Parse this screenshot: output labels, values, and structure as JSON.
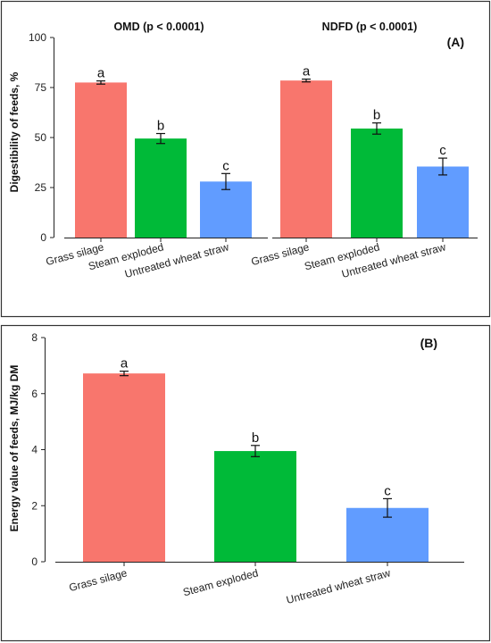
{
  "colors": {
    "grass_silage": "#f8766d",
    "steam_exploded": "#00ba38",
    "untreated_wheat_straw": "#619cff"
  },
  "chart_data": [
    {
      "type": "bar",
      "panel": "(A)",
      "title": "OMD (p < 0.0001)",
      "ylabel": "Digestibility of feeds, %",
      "ylim": [
        0,
        100
      ],
      "yticks": [
        0,
        25,
        50,
        75,
        100
      ],
      "categories": [
        "Grass silage",
        "Steam exploded",
        "Untreated wheat straw"
      ],
      "values": [
        77.5,
        49.5,
        28.0
      ],
      "errors": [
        0.8,
        2.5,
        4.0
      ],
      "letters": [
        "a",
        "b",
        "c"
      ]
    },
    {
      "type": "bar",
      "title": "NDFD (p < 0.0001)",
      "ylim": [
        0,
        100
      ],
      "categories": [
        "Grass silage",
        "Steam exploded",
        "Untreated wheat straw"
      ],
      "values": [
        78.5,
        54.5,
        35.5
      ],
      "errors": [
        0.7,
        2.8,
        4.2
      ],
      "letters": [
        "a",
        "b",
        "c"
      ]
    },
    {
      "type": "bar",
      "panel": "(B)",
      "title": "",
      "ylabel": "Energy value of feeds, MJ/kg DM",
      "ylim": [
        0,
        8
      ],
      "yticks": [
        0,
        2,
        4,
        6,
        8
      ],
      "categories": [
        "Grass silage",
        "Steam exploded",
        "Untreated wheat straw"
      ],
      "values": [
        6.72,
        3.95,
        1.92
      ],
      "errors": [
        0.08,
        0.2,
        0.33
      ],
      "letters": [
        "a",
        "b",
        "c"
      ]
    }
  ]
}
